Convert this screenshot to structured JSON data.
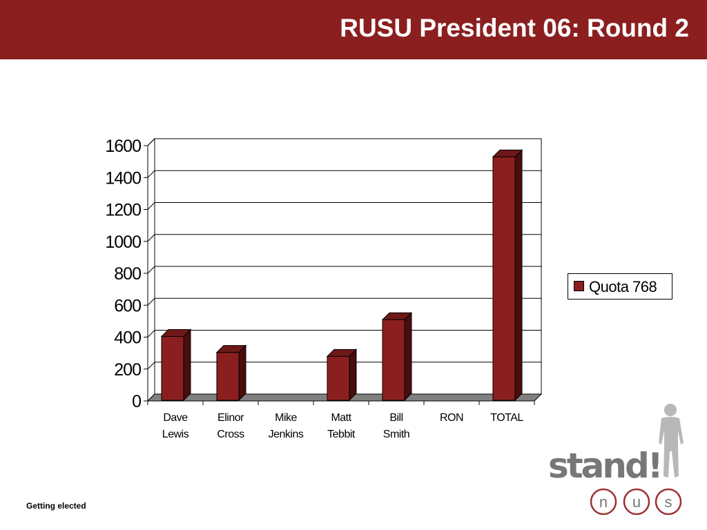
{
  "header": {
    "title": "RUSU President 06: Round 2"
  },
  "footer": {
    "text": "Getting elected"
  },
  "legend": {
    "label": "Quota 768"
  },
  "logo": {
    "word": "stand!",
    "letters": [
      "n",
      "u",
      "s"
    ]
  },
  "colors": {
    "header_bg": "#8b1f1f",
    "bar_front": "#8b1f1f",
    "bar_side": "#4a0d0d",
    "bar_top": "#6e1818",
    "floor": "#808080",
    "logo_gray": "#777777",
    "logo_ring": "#9b3030"
  },
  "chart_data": {
    "type": "bar",
    "style": "3d-column",
    "categories": [
      [
        "Dave",
        "Lewis"
      ],
      [
        "Elinor",
        "Cross"
      ],
      [
        "Mike",
        "Jenkins"
      ],
      [
        "Matt",
        "Tebbit"
      ],
      [
        "Bill",
        "Smith"
      ],
      [
        "RON"
      ],
      [
        "TOTAL"
      ]
    ],
    "series": [
      {
        "name": "Quota 768",
        "values": [
          400,
          300,
          0,
          275,
          505,
          0,
          1525
        ]
      }
    ],
    "ylim": [
      0,
      1600
    ],
    "yticks": [
      "0",
      "200",
      "400",
      "600",
      "800",
      "1000",
      "1200",
      "1400",
      "1600"
    ],
    "grid": true,
    "legend_position": "right"
  }
}
